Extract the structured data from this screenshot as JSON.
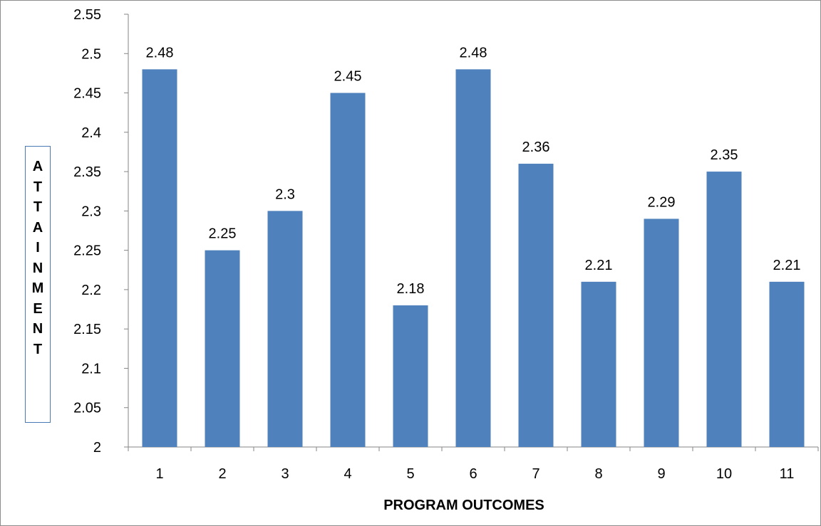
{
  "chart_data": {
    "type": "bar",
    "categories": [
      "1",
      "2",
      "3",
      "4",
      "5",
      "6",
      "7",
      "8",
      "9",
      "10",
      "11"
    ],
    "values": [
      2.48,
      2.25,
      2.3,
      2.45,
      2.18,
      2.48,
      2.36,
      2.21,
      2.29,
      2.35,
      2.21
    ],
    "data_labels": [
      "2.48",
      "2.25",
      "2.3",
      "2.45",
      "2.18",
      "2.48",
      "2.36",
      "2.21",
      "2.29",
      "2.35",
      "2.21"
    ],
    "ylim": [
      2,
      2.55
    ],
    "yticks": [
      "2",
      "2.05",
      "2.1",
      "2.15",
      "2.2",
      "2.25",
      "2.3",
      "2.35",
      "2.4",
      "2.45",
      "2.5",
      "2.55"
    ],
    "xlabel": "PROGRAM OUTCOMES",
    "ylabel": "ATTAINMENT",
    "grid": false,
    "legend": "none",
    "bar_color": "#4f81bd"
  }
}
